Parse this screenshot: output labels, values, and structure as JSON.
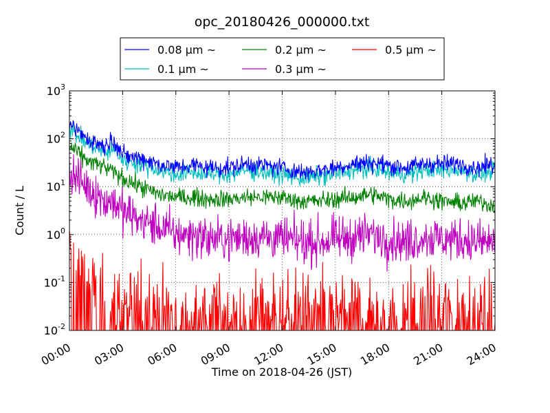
{
  "chart_data": {
    "type": "line",
    "title": "opc_20180426_000000.txt",
    "xlabel": "Time on 2018-04-26 (JST)",
    "ylabel": "Count / L",
    "y_scale": "log",
    "ylim": [
      0.01,
      1000
    ],
    "xlim": [
      "00:00",
      "24:00"
    ],
    "grid": true,
    "legend_position": "top-outside",
    "x_ticks": [
      "00:00",
      "03:00",
      "06:00",
      "09:00",
      "12:00",
      "15:00",
      "18:00",
      "21:00",
      "24:00"
    ],
    "y_ticks": [
      {
        "base": "10",
        "exp": "-2",
        "value": 0.01
      },
      {
        "base": "10",
        "exp": "-1",
        "value": 0.1
      },
      {
        "base": "10",
        "exp": "0",
        "value": 1
      },
      {
        "base": "10",
        "exp": "1",
        "value": 10
      },
      {
        "base": "10",
        "exp": "2",
        "value": 100
      },
      {
        "base": "10",
        "exp": "3",
        "value": 1000
      }
    ],
    "x": [
      "00:00",
      "01:00",
      "02:00",
      "02:30",
      "03:00",
      "04:00",
      "05:00",
      "06:00",
      "07:00",
      "08:00",
      "09:00",
      "10:00",
      "11:00",
      "12:00",
      "13:00",
      "14:00",
      "15:00",
      "16:00",
      "17:00",
      "18:00",
      "19:00",
      "20:00",
      "21:00",
      "22:00",
      "23:00",
      "24:00"
    ],
    "series": [
      {
        "name": "0.08 μm ~",
        "color": "#0000ff",
        "values": [
          200,
          100,
          70,
          100,
          45,
          40,
          30,
          25,
          28,
          25,
          25,
          30,
          28,
          25,
          20,
          22,
          25,
          30,
          32,
          28,
          25,
          30,
          30,
          30,
          25,
          30
        ]
      },
      {
        "name": "0.1 μm ~",
        "color": "#00bfbf",
        "values": [
          160,
          80,
          50,
          60,
          35,
          30,
          22,
          18,
          20,
          18,
          18,
          22,
          20,
          18,
          15,
          16,
          18,
          22,
          24,
          20,
          18,
          22,
          22,
          22,
          18,
          22
        ]
      },
      {
        "name": "0.2 μm ~",
        "color": "#008000",
        "values": [
          70,
          35,
          25,
          20,
          15,
          10,
          7,
          6,
          6,
          5.5,
          5.5,
          6,
          6,
          6,
          5,
          5,
          5.5,
          6,
          7,
          5.5,
          5,
          6,
          5,
          4.5,
          5,
          4
        ]
      },
      {
        "name": "0.3 μm ~",
        "color": "#bf00bf",
        "values": [
          20,
          10,
          5,
          5,
          3,
          2,
          1.5,
          1,
          1,
          0.8,
          0.8,
          0.9,
          0.9,
          0.8,
          0.7,
          0.7,
          0.8,
          0.9,
          1,
          0.8,
          0.7,
          0.9,
          0.8,
          0.8,
          0.7,
          0.7
        ]
      },
      {
        "name": "0.5 μm ~",
        "color": "#ff0000",
        "values": [
          0.5,
          0.1,
          0.05,
          0.05,
          0.04,
          0.04,
          0.03,
          0.03,
          0.03,
          0.03,
          0.03,
          0.03,
          0.03,
          0.03,
          0.03,
          0.03,
          0.03,
          0.03,
          0.03,
          0.03,
          0.03,
          0.03,
          0.03,
          0.03,
          0.03,
          0.03
        ]
      }
    ]
  }
}
